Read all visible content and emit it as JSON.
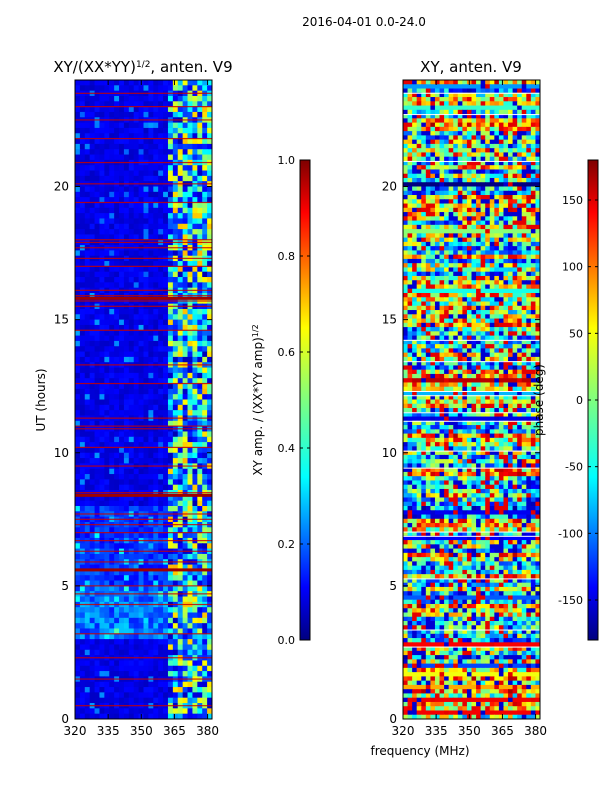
{
  "suptitle": "2016-04-01 0.0-24.0",
  "chart_data": [
    {
      "type": "heatmap",
      "title": "XY/(XX*YY)",
      "title_superscript": "1/2",
      "title_suffix": ", anten. V9",
      "xlabel": "",
      "ylabel": "UT (hours)",
      "xlim": [
        320,
        382
      ],
      "ylim": [
        0,
        24
      ],
      "xticks": [
        "320",
        "335",
        "350",
        "365",
        "380"
      ],
      "yticks": [
        "0",
        "5",
        "10",
        "15",
        "20"
      ],
      "colorbar": {
        "label": "XY amp. / (XX*YY amp)",
        "label_superscript": "1/2",
        "range": [
          0.0,
          1.0
        ],
        "ticks": [
          "0.0",
          "0.2",
          "0.4",
          "0.6",
          "0.8",
          "1.0"
        ]
      },
      "flagged_hours": [
        0.5,
        1.5,
        2.3,
        3.2,
        4.3,
        4.7,
        5.0,
        5.9,
        6.3,
        6.7,
        7.0,
        7.3,
        7.5,
        7.7,
        8.4,
        8.5,
        9.5,
        10.2,
        10.9,
        11.0,
        11.3,
        12.6,
        13.3,
        14.6,
        15.5,
        15.7,
        15.9,
        16.1,
        17.0,
        17.3,
        17.7,
        17.9,
        18.0,
        19.4,
        20.1,
        20.9,
        21.8,
        22.5,
        23.0,
        23.5
      ],
      "rfi_hours": [
        5.6,
        8.4,
        15.8
      ]
    },
    {
      "type": "heatmap",
      "title": "XY, anten. V9",
      "xlabel": "frequency (MHz)",
      "ylabel": "",
      "xlim": [
        320,
        382
      ],
      "ylim": [
        0,
        24
      ],
      "xticks": [
        "320",
        "335",
        "350",
        "365",
        "380"
      ],
      "yticks": [
        "0",
        "5",
        "10",
        "15",
        "20"
      ],
      "colorbar": {
        "label": "phase (deg)",
        "range": [
          -180,
          180
        ],
        "ticks": [
          "-150",
          "-100",
          "-50",
          "0",
          "50",
          "100",
          "150"
        ]
      }
    }
  ]
}
